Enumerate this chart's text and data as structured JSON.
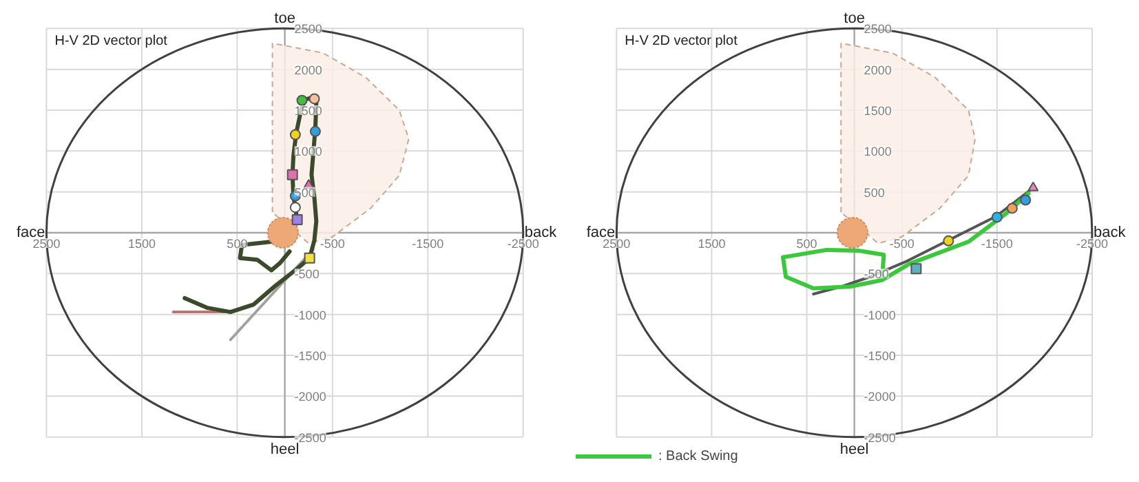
{
  "chart_data": [
    {
      "type": "line",
      "title": "H-V 2D vector plot",
      "xlim": [
        2500,
        -2500
      ],
      "ylim": [
        -2500,
        2500
      ],
      "xticks": [
        2500,
        1500,
        500,
        -500,
        -1500,
        -2500
      ],
      "yticks": [
        2500,
        2000,
        1500,
        1000,
        500,
        -500,
        -1000,
        -1500,
        -2000,
        -2500
      ],
      "grid": true,
      "annotations": [
        "toe",
        "heel",
        "face",
        "back"
      ],
      "series": [
        {
          "type": "area",
          "color": "#fcefe6",
          "line_style": "dashed",
          "x": [
            130,
            130,
            -400,
            -850,
            -1200,
            -1300,
            -1200,
            -900,
            -500,
            -250,
            130
          ],
          "values": [
            250,
            2320,
            2200,
            1900,
            1500,
            1150,
            700,
            300,
            -50,
            -130,
            250
          ]
        },
        {
          "type": "line",
          "color": "#c07070",
          "line_style": "dotted",
          "x": [
            1170,
            630
          ],
          "values": [
            -970,
            -970
          ]
        },
        {
          "type": "line",
          "color": "#a0a0a0",
          "line_style": "dotted",
          "x": [
            570,
            -300
          ],
          "values": [
            -1310,
            -200
          ]
        },
        {
          "color": "#3b4a2b",
          "x": [
            1050,
            810,
            570,
            330,
            100,
            -140,
            -260,
            -310,
            -330,
            -310,
            -280,
            -300,
            -320,
            -330,
            -310,
            -210,
            -170,
            -120,
            -90,
            -80,
            -90,
            -110,
            -130,
            -90,
            140,
            450,
            470,
            290,
            140,
            50,
            -50
          ],
          "values": [
            -800,
            -920,
            -970,
            -880,
            -650,
            -430,
            -310,
            -90,
            140,
            430,
            710,
            990,
            1280,
            1590,
            1660,
            1630,
            1500,
            1220,
            940,
            710,
            450,
            310,
            160,
            30,
            -110,
            -150,
            -310,
            -330,
            -460,
            -370,
            -230
          ]
        },
        {
          "type": "bubble",
          "color": "#eea878",
          "x": [
            20
          ],
          "values": [
            0
          ],
          "sizes": [
            1
          ]
        },
        {
          "type": "scatter",
          "marker": "circle",
          "x": [
            -180,
            -310,
            -110,
            -320,
            -110,
            -110
          ],
          "values": [
            1620,
            1640,
            1200,
            1240,
            450,
            310
          ],
          "colors": [
            "#40c040",
            "#f8c0a0",
            "#f0d020",
            "#30a0e0",
            "#30a0e0",
            "#ffffff"
          ]
        },
        {
          "type": "scatter",
          "marker": "square",
          "x": [
            -80,
            -130,
            -260
          ],
          "values": [
            710,
            160,
            -310
          ],
          "colors": [
            "#e070b0",
            "#a080e0",
            "#f0e040"
          ]
        },
        {
          "type": "scatter",
          "marker": "triangle",
          "x": [
            -250
          ],
          "values": [
            580
          ],
          "colors": [
            "#e070b0"
          ]
        }
      ]
    },
    {
      "type": "line",
      "title": "H-V 2D vector plot",
      "xlim": [
        2500,
        -2500
      ],
      "ylim": [
        -2500,
        2500
      ],
      "xticks": [
        2500,
        1500,
        500,
        -500,
        -1500,
        -2500
      ],
      "yticks": [
        2500,
        2000,
        1500,
        1000,
        500,
        -500,
        -1000,
        -1500,
        -2000,
        -2500
      ],
      "grid": true,
      "legend": "bottom left",
      "annotations": [
        "toe",
        "heel",
        "face",
        "back"
      ],
      "series": [
        {
          "type": "area",
          "color": "#fcefe6",
          "line_style": "dashed",
          "x": [
            140,
            140,
            -400,
            -850,
            -1200,
            -1270,
            -1200,
            -900,
            -500,
            -250,
            140
          ],
          "values": [
            250,
            2320,
            2200,
            1900,
            1500,
            1150,
            700,
            300,
            -50,
            -130,
            250
          ]
        },
        {
          "type": "bubble",
          "color": "#eea878",
          "x": [
            20
          ],
          "values": [
            0
          ],
          "sizes": [
            1
          ]
        },
        {
          "type": "line",
          "color": "#555555",
          "x": [
            -1880,
            -1490,
            -1010,
            -530,
            -140,
            140,
            430
          ],
          "values": [
            550,
            200,
            -80,
            -360,
            -550,
            -660,
            -750
          ]
        },
        {
          "name": ": Back Swing",
          "color": "#3cc83c",
          "x": [
            750,
            720,
            430,
            50,
            -290,
            -310,
            -50,
            290,
            750,
            720,
            430,
            50,
            -290,
            -580,
            -1200,
            -1590,
            -1830
          ],
          "values": [
            -300,
            -540,
            -680,
            -660,
            -580,
            -270,
            -220,
            -210,
            -300,
            -540,
            -680,
            -660,
            -580,
            -380,
            -110,
            230,
            480
          ]
        },
        {
          "type": "scatter",
          "marker": "circle",
          "x": [
            -1800,
            -1660,
            -1500,
            -990
          ],
          "values": [
            400,
            300,
            190,
            -100
          ],
          "colors": [
            "#30a0e0",
            "#f0a060",
            "#30b0e0",
            "#f0d020"
          ]
        },
        {
          "type": "scatter",
          "marker": "square",
          "x": [
            -650
          ],
          "values": [
            -440
          ],
          "colors": [
            "#60b0c0"
          ]
        },
        {
          "type": "scatter",
          "marker": "triangle",
          "x": [
            -1880
          ],
          "values": [
            550
          ],
          "colors": [
            "#f080c0"
          ]
        }
      ]
    }
  ]
}
